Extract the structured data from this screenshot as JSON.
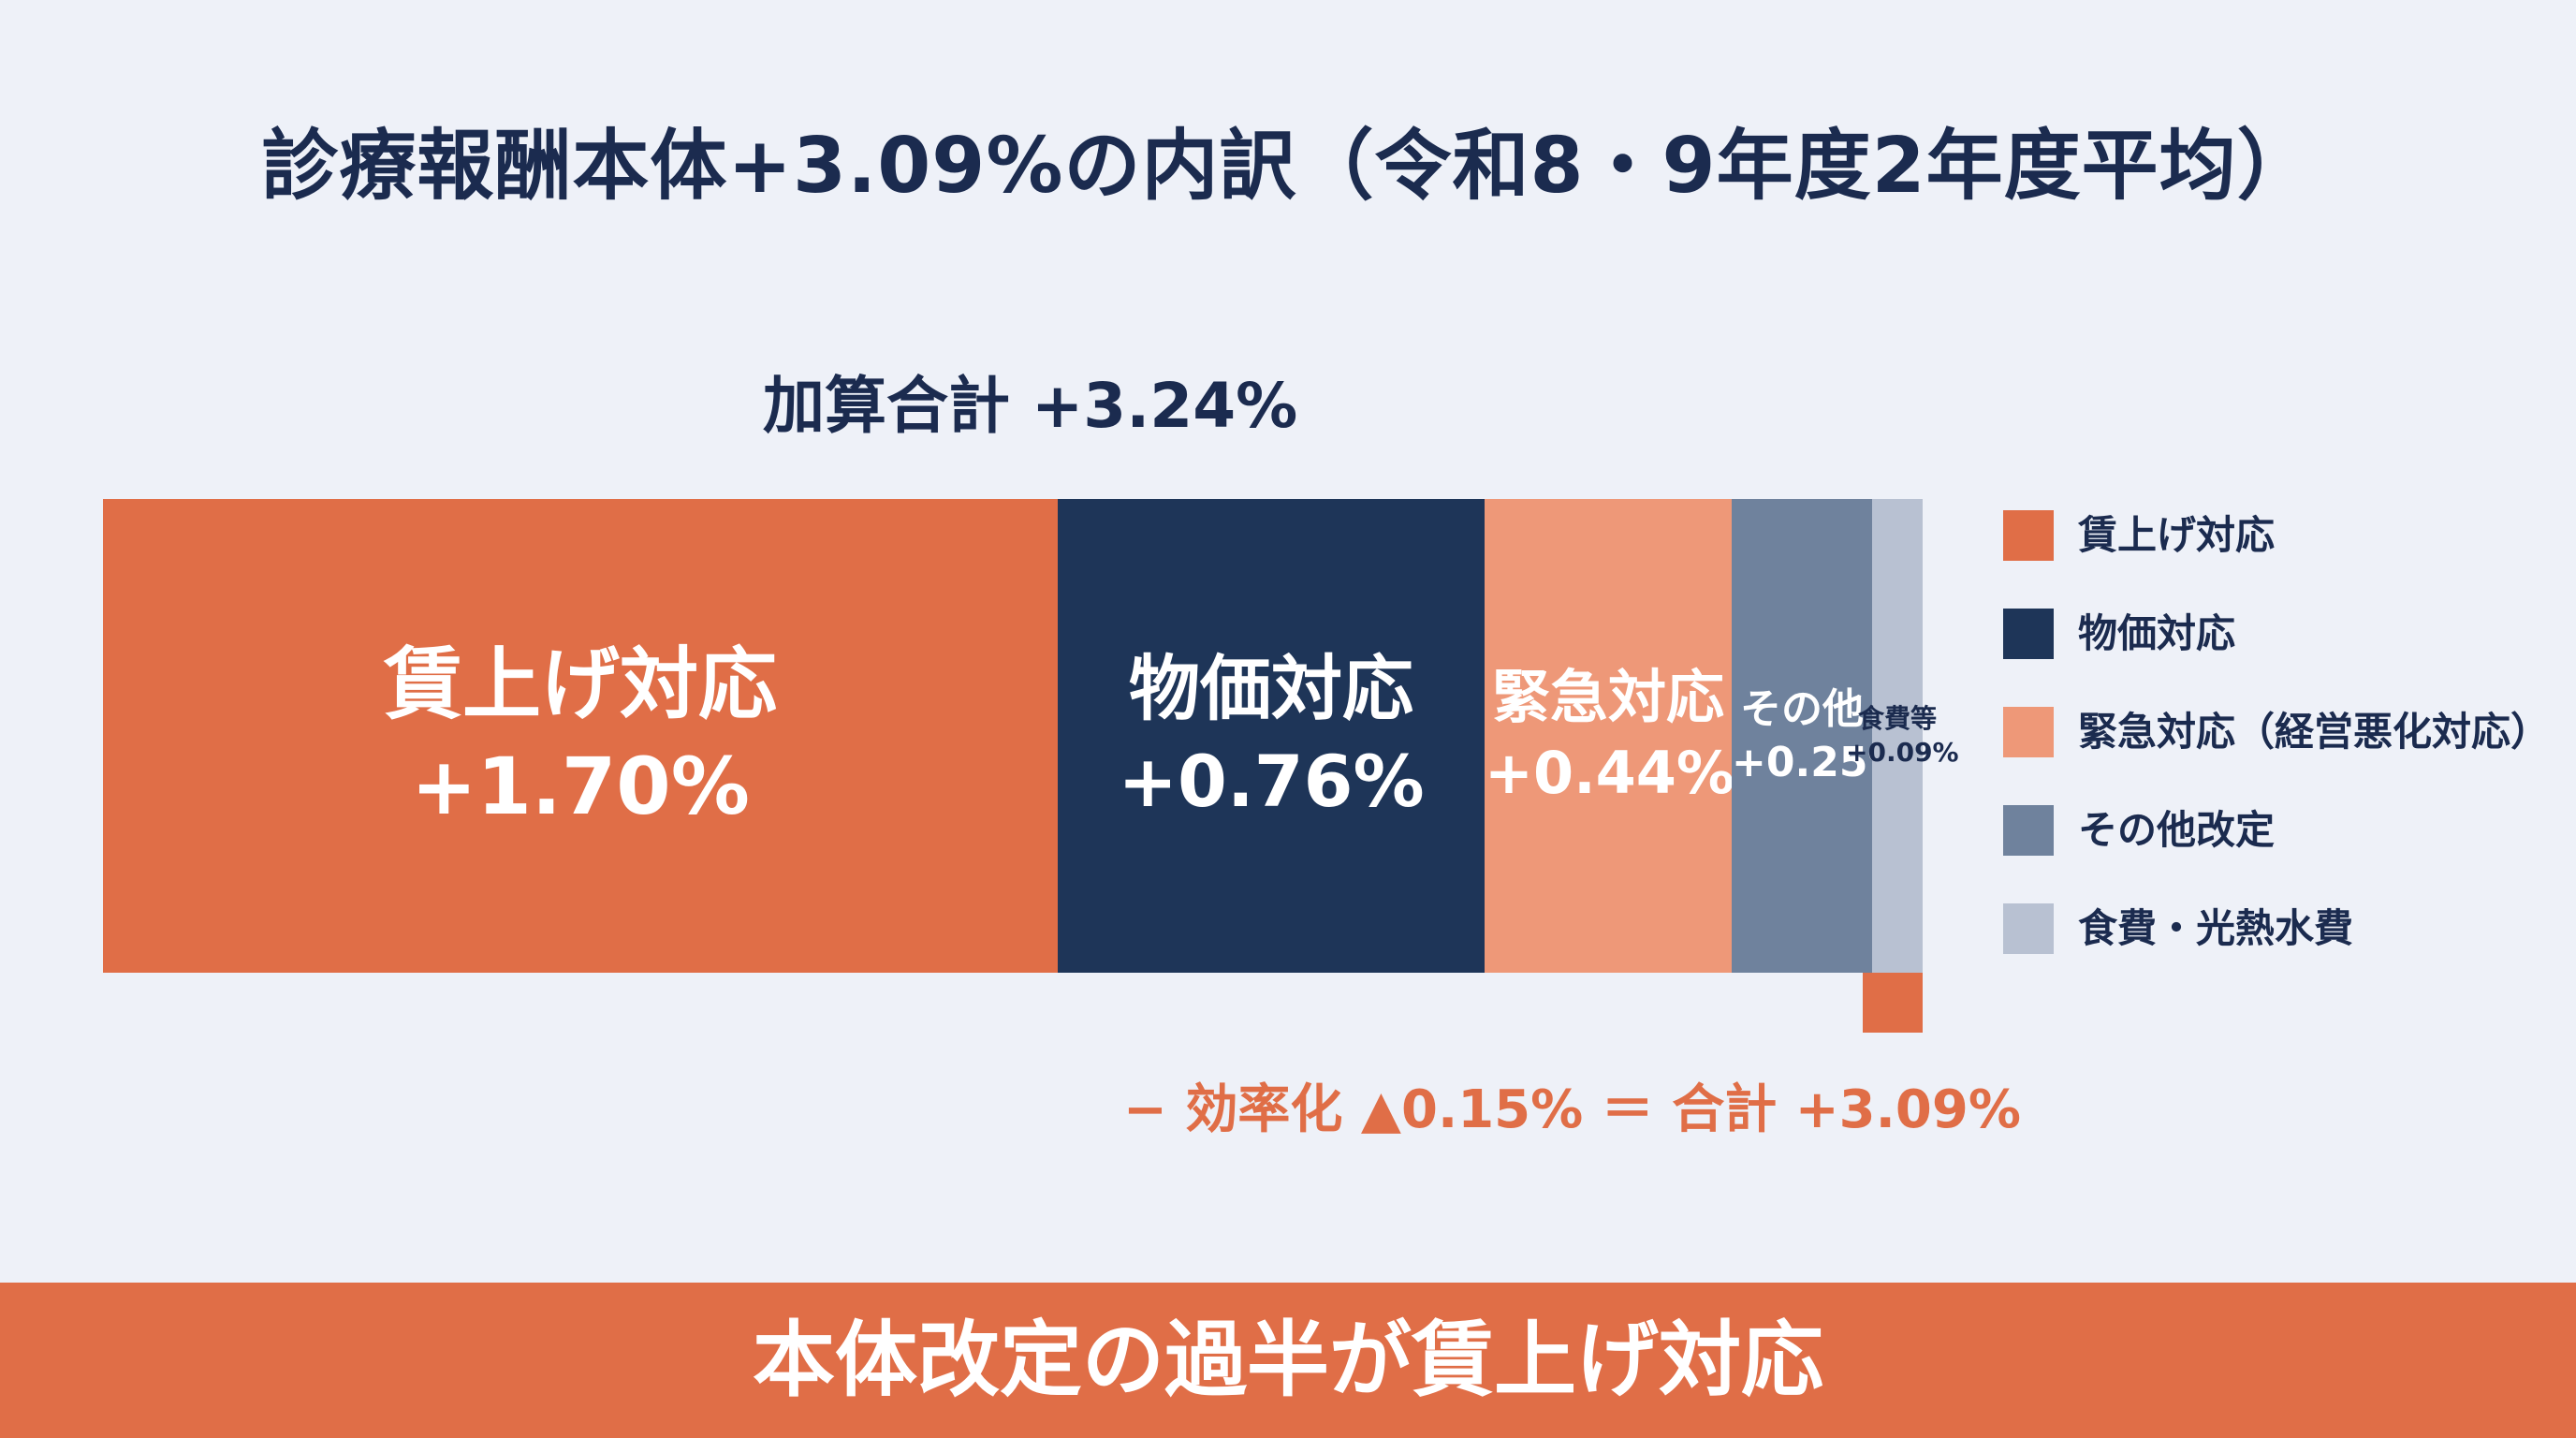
{
  "title": "診療報酬本体+3.09%の内訳（令和8・9年度2年度平均）",
  "total_label": "加算合計 +3.24%",
  "formula": "− 効率化 ▲0.15% ＝ 合計 +3.09%",
  "banner": "本体改定の過半が賃上げ対応",
  "colors": {
    "orange": "#e06e47",
    "navy": "#1e3558",
    "salmon": "#ee9878",
    "slate": "#6f829d",
    "light": "#b8c1d2",
    "background": "#eef1f8"
  },
  "chart_data": {
    "type": "bar",
    "orientation": "horizontal-stacked",
    "total_positive": 3.24,
    "total": 3.09,
    "segments": [
      {
        "name": "賃上げ対応",
        "label": "賃上げ対応",
        "value_text": "+1.70%",
        "value": 1.7,
        "color": "#e06e47",
        "text_color": "#ffffff"
      },
      {
        "name": "物価対応",
        "label": "物価対応",
        "value_text": "+0.76%",
        "value": 0.76,
        "color": "#1e3558",
        "text_color": "#ffffff"
      },
      {
        "name": "緊急対応（経営悪化対応）",
        "label": "緊急対応",
        "value_text": "+0.44%",
        "value": 0.44,
        "color": "#ee9878",
        "text_color": "#ffffff"
      },
      {
        "name": "その他改定",
        "label": "その他",
        "value_text": "+0.25%",
        "value": 0.25,
        "color": "#6f829d",
        "text_color": "#ffffff"
      },
      {
        "name": "食費・光熱水費",
        "label": "食費等",
        "value_text": "+0.09%",
        "value": 0.09,
        "color": "#b8c1d2",
        "text_color": "#1b2b4f"
      }
    ],
    "negative": {
      "name": "効率化",
      "value": -0.15,
      "color": "#e06e47"
    },
    "legend": [
      "賃上げ対応",
      "物価対応",
      "緊急対応（経営悪化対応）",
      "その他改定",
      "食費・光熱水費"
    ],
    "legend_position": "right"
  }
}
